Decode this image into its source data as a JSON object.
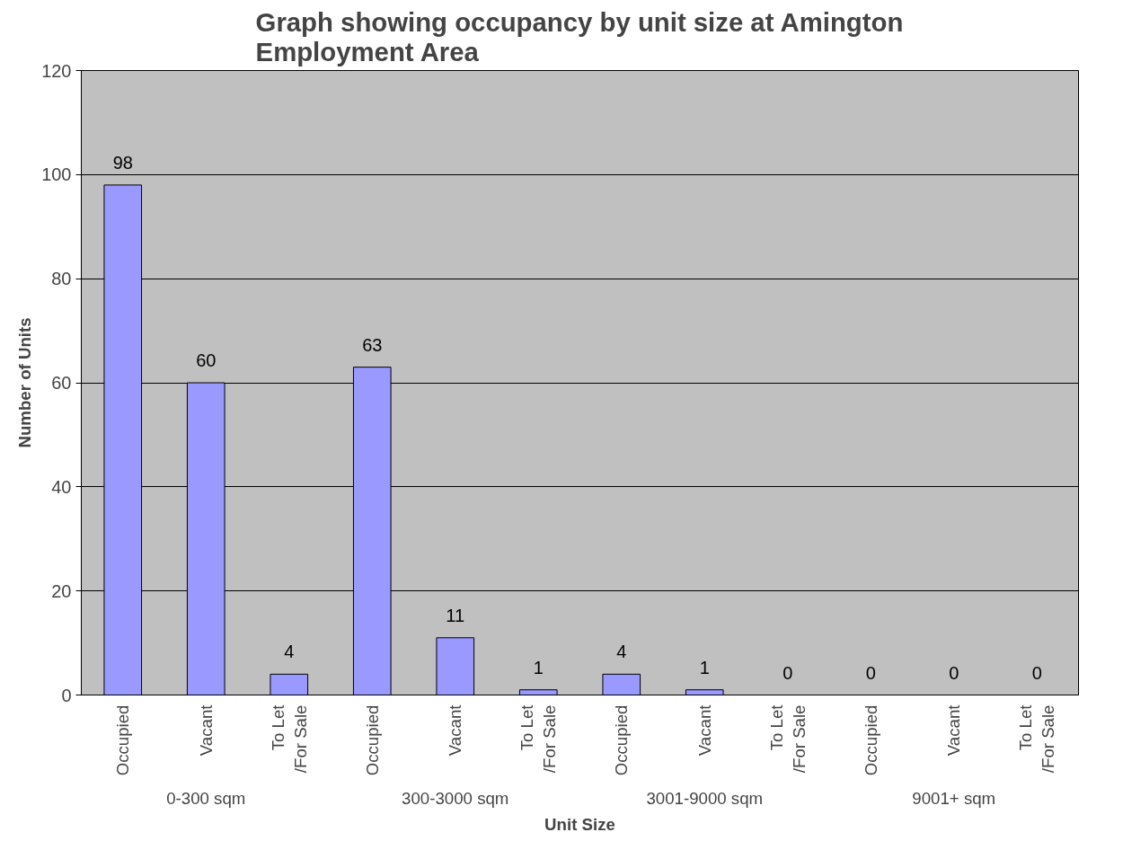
{
  "chart_data": {
    "type": "bar",
    "title": "Graph showing occupancy by unit size at Amington\nEmployment Area",
    "xlabel": "Unit Size",
    "ylabel": "Number of Units",
    "categories": [
      "Occupied",
      "Vacant",
      "To Let\n/For Sale",
      "Occupied",
      "Vacant",
      "To Let\n/For Sale",
      "Occupied",
      "Vacant",
      "To Let\n/For Sale",
      "Occupied",
      "Vacant",
      "To Let\n/For Sale"
    ],
    "values": [
      98,
      60,
      4,
      63,
      11,
      1,
      4,
      1,
      0,
      0,
      0,
      0
    ],
    "color": "#9999ff",
    "annotations": [
      "0-300 sqm",
      "300-3000 sqm",
      "3001-9000 sqm",
      "9001+ sqm"
    ],
    "ylim": [
      0,
      120
    ],
    "yticks": [
      0,
      20,
      40,
      60,
      80,
      100,
      120
    ],
    "grid": "y",
    "data_labels": true
  }
}
